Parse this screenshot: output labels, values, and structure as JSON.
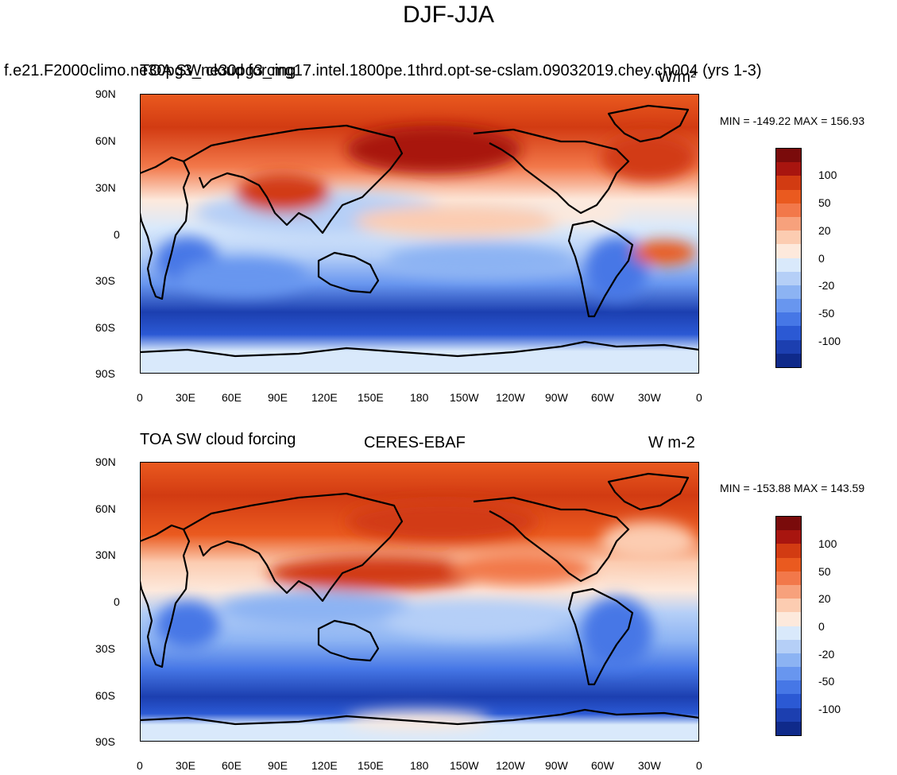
{
  "figure": {
    "title": "DJF-JJA",
    "lat_ticks": [
      "90N",
      "60N",
      "30N",
      "0",
      "30S",
      "60S",
      "90S"
    ],
    "lon_ticks": [
      "0",
      "30E",
      "60E",
      "90E",
      "120E",
      "150E",
      "180",
      "150W",
      "120W",
      "90W",
      "60W",
      "30W",
      "0"
    ],
    "colorbar_colors": [
      "#7a0b0b",
      "#a8150f",
      "#d23b12",
      "#ea5a1f",
      "#f2784a",
      "#f7a17c",
      "#fcccb1",
      "#fde9dc",
      "#d9e9fb",
      "#b5cff7",
      "#8cb3f3",
      "#6896ef",
      "#4677e6",
      "#2b59d4",
      "#1c3fb0",
      "#0f2a8a"
    ],
    "colorbar_labels": [
      "100",
      "50",
      "20",
      "0",
      "-20",
      "-50",
      "-100"
    ]
  },
  "top_panel": {
    "left_title": "f.e21.F2000climo.ne30pg3_ne30pg3_mg17.intel.1800pe.1thrd.opt-se-cslam.09032019.chey.ch004 (yrs 1-3)",
    "center_title": "TOA SW cloud forcing",
    "units": "W/m²",
    "min_max": "MIN = -149.22  MAX = 156.93"
  },
  "bottom_panel": {
    "left_title": "TOA SW cloud forcing",
    "center_title": "CERES-EBAF",
    "units": "W m-2",
    "min_max": "MIN = -153.88  MAX = 143.59"
  }
}
